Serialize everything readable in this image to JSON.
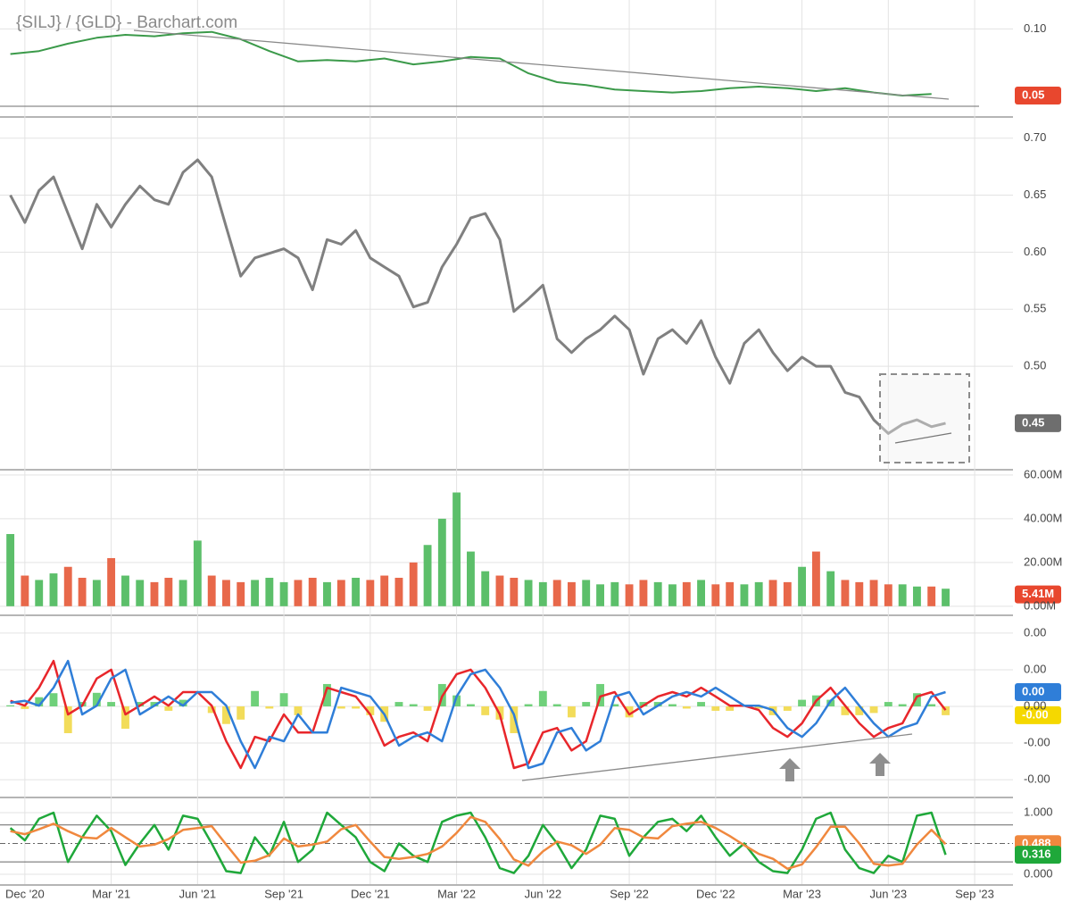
{
  "chart_data": [
    {
      "type": "line",
      "title": "{SILJ} / {GLD} - Barchart.com",
      "x": [
        2020.875,
        2020.958,
        2021.042,
        2021.125,
        2021.208,
        2021.292,
        2021.375,
        2021.458,
        2021.542,
        2021.625,
        2021.708,
        2021.792,
        2021.875,
        2021.958,
        2022.042,
        2022.125,
        2022.208,
        2022.292,
        2022.375,
        2022.458,
        2022.542,
        2022.625,
        2022.708,
        2022.792,
        2022.875,
        2022.958,
        2023.042,
        2023.125,
        2023.208,
        2023.292,
        2023.375,
        2023.458,
        2023.542
      ],
      "values": [
        0.083,
        0.085,
        0.09,
        0.094,
        0.096,
        0.095,
        0.097,
        0.098,
        0.093,
        0.085,
        0.078,
        0.079,
        0.078,
        0.08,
        0.076,
        0.078,
        0.081,
        0.08,
        0.07,
        0.064,
        0.062,
        0.059,
        0.058,
        0.057,
        0.058,
        0.06,
        0.061,
        0.06,
        0.058,
        0.06,
        0.057,
        0.055,
        0.056
      ],
      "color": "#3b9a4a",
      "xlim": [
        2020.845,
        2023.778
      ],
      "ylim": [
        0.0405,
        0.1195
      ],
      "yticks": [
        {
          "value": 0.1,
          "label": "0.10"
        }
      ],
      "badge": {
        "value": 0.055,
        "label": "0.05",
        "color": "#e8472e"
      }
    },
    {
      "type": "panels",
      "xlim": [
        2020.845,
        2023.778
      ],
      "x": [
        2020.875,
        2020.917,
        2020.958,
        2021.0,
        2021.042,
        2021.083,
        2021.125,
        2021.167,
        2021.208,
        2021.25,
        2021.292,
        2021.333,
        2021.375,
        2021.417,
        2021.458,
        2021.5,
        2021.542,
        2021.583,
        2021.625,
        2021.667,
        2021.708,
        2021.75,
        2021.792,
        2021.833,
        2021.875,
        2021.917,
        2021.958,
        2022.0,
        2022.042,
        2022.083,
        2022.125,
        2022.167,
        2022.208,
        2022.25,
        2022.292,
        2022.333,
        2022.375,
        2022.417,
        2022.458,
        2022.5,
        2022.542,
        2022.583,
        2022.625,
        2022.667,
        2022.708,
        2022.75,
        2022.792,
        2022.833,
        2022.875,
        2022.917,
        2022.958,
        2023.0,
        2023.042,
        2023.083,
        2023.125,
        2023.167,
        2023.208,
        2023.25,
        2023.292,
        2023.333,
        2023.375,
        2023.417,
        2023.458,
        2023.5,
        2023.542,
        2023.583
      ],
      "xticks": [
        {
          "value": 2020.917,
          "label": "Dec '20"
        },
        {
          "value": 2021.167,
          "label": "Mar '21"
        },
        {
          "value": 2021.417,
          "label": "Jun '21"
        },
        {
          "value": 2021.667,
          "label": "Sep '21"
        },
        {
          "value": 2021.917,
          "label": "Dec '21"
        },
        {
          "value": 2022.167,
          "label": "Mar '22"
        },
        {
          "value": 2022.417,
          "label": "Jun '22"
        },
        {
          "value": 2022.667,
          "label": "Sep '22"
        },
        {
          "value": 2022.917,
          "label": "Dec '22"
        },
        {
          "value": 2023.167,
          "label": "Mar '23"
        },
        {
          "value": 2023.417,
          "label": "Jun '23"
        },
        {
          "value": 2023.667,
          "label": "Sep '23"
        }
      ],
      "panels": [
        {
          "type": "line",
          "color": "#808080",
          "values": [
            0.65,
            0.626,
            0.654,
            0.666,
            0.634,
            0.603,
            0.642,
            0.622,
            0.642,
            0.658,
            0.646,
            0.642,
            0.67,
            0.681,
            0.666,
            0.622,
            0.579,
            0.595,
            0.599,
            0.603,
            0.595,
            0.567,
            0.611,
            0.607,
            0.619,
            0.595,
            0.587,
            0.579,
            0.552,
            0.556,
            0.587,
            0.607,
            0.63,
            0.634,
            0.611,
            0.548,
            0.559,
            0.571,
            0.524,
            0.512,
            0.524,
            0.532,
            0.544,
            0.532,
            0.493,
            0.524,
            0.532,
            0.52,
            0.54,
            0.508,
            0.485,
            0.52,
            0.532,
            0.512,
            0.496,
            0.508,
            0.5,
            0.5,
            0.477,
            0.473,
            0.453,
            0.441,
            0.449,
            0.453,
            0.447,
            0.45
          ],
          "ylim": [
            0.41,
            0.717
          ],
          "yticks": [
            {
              "value": 0.5,
              "label": "0.50"
            },
            0.55,
            {
              "value": 0.6,
              "label": "0.60"
            },
            0.65,
            {
              "value": 0.7,
              "label": "0.70"
            }
          ],
          "badge": {
            "value": 0.45,
            "label": "0.45",
            "color": "#6e6e6e"
          }
        },
        {
          "type": "bar",
          "up_color": "#5cbf6a",
          "down_color": "#e8684a",
          "values": [
            33,
            14,
            12,
            15,
            18,
            13,
            12,
            22,
            14,
            12,
            11,
            13,
            12,
            30,
            14,
            12,
            11,
            12,
            13,
            11,
            12,
            13,
            11,
            12,
            13,
            12,
            14,
            13,
            20,
            28,
            40,
            52,
            25,
            16,
            14,
            13,
            12,
            11,
            12,
            11,
            12,
            10,
            11,
            10,
            12,
            11,
            10,
            11,
            12,
            10,
            11,
            10,
            11,
            12,
            11,
            18,
            25,
            16,
            12,
            11,
            12,
            10,
            10,
            9,
            9,
            8
          ],
          "ylim": [
            -3.75,
            62
          ],
          "yticks": [
            {
              "value": 0,
              "label": "0.00M"
            },
            {
              "value": 20,
              "label": "20.00M"
            },
            {
              "value": 40,
              "label": "40.00M"
            },
            {
              "value": 60,
              "label": "60.00M"
            }
          ],
          "badge": {
            "value": 5.41,
            "label": "5.41M",
            "color": "#e8472e"
          }
        },
        {
          "type": "macd",
          "macd": {
            "color": "#e8262b",
            "values": [
              0.00015,
              2e-05,
              0.00051,
              0.00124,
              -0.00022,
              2e-05,
              0.00076,
              0.001,
              -0.00022,
              2e-05,
              0.00027,
              2e-05,
              0.00039,
              0.00039,
              2e-05,
              -0.00095,
              -0.00168,
              -0.00083,
              -0.00095,
              -0.00022,
              -0.00071,
              -0.00071,
              0.00051,
              0.00039,
              0.00027,
              -0.00022,
              -0.00107,
              -0.00083,
              -0.00071,
              -0.00095,
              0.00027,
              0.00088,
              0.001,
              0.00051,
              -0.00022,
              -0.00168,
              -0.00156,
              -0.00071,
              -0.00059,
              -0.0012,
              -0.00095,
              0.00027,
              0.00039,
              -0.00022,
              2e-05,
              0.00027,
              0.00039,
              0.00027,
              0.00051,
              0.00027,
              2e-05,
              2e-05,
              -0.0001,
              -0.00059,
              -0.00083,
              -0.00046,
              0.00015,
              0.00051,
              2e-05,
              -0.00046,
              -0.00083,
              -0.00059,
              -0.00046,
              0.00027,
              0.00039,
              -0.0001
            ]
          },
          "signal": {
            "color": "#2f7ed8",
            "values": [
              0.0001,
              0.00015,
              2e-05,
              0.00051,
              0.00124,
              -0.00022,
              2e-05,
              0.00076,
              0.001,
              -0.00022,
              2e-05,
              0.00027,
              2e-05,
              0.00039,
              0.00039,
              2e-05,
              -0.00095,
              -0.00168,
              -0.00083,
              -0.00095,
              -0.00022,
              -0.00071,
              -0.00071,
              0.00051,
              0.00039,
              0.00027,
              -0.00022,
              -0.00107,
              -0.00083,
              -0.00071,
              -0.00095,
              0.00027,
              0.00088,
              0.001,
              0.00051,
              -0.00022,
              -0.00168,
              -0.00156,
              -0.00071,
              -0.00059,
              -0.0012,
              -0.00095,
              0.00027,
              0.00039,
              -0.00022,
              2e-05,
              0.00027,
              0.00039,
              0.00027,
              0.00051,
              0.00027,
              2e-05,
              2e-05,
              -0.0001,
              -0.00059,
              -0.00083,
              -0.00046,
              0.00015,
              0.00051,
              2e-05,
              -0.00046,
              -0.00083,
              -0.00059,
              -0.00046,
              0.00027,
              0.00039
            ]
          },
          "histogram": {
            "up_color": "#6fd07a",
            "down_color": "#f2dc5a",
            "values": [
              3e-05,
              -7e-05,
              0.00025,
              0.00036,
              -0.00073,
              0.00012,
              0.00037,
              0.00012,
              -0.00061,
              0.00012,
              0.00012,
              -0.00012,
              0.00018,
              0,
              -0.00018,
              -0.00048,
              -0.00036,
              0.00042,
              -6e-05,
              0.00036,
              -0.00024,
              0,
              0.00061,
              -6e-05,
              -6e-05,
              -0.00024,
              -0.00042,
              0.00012,
              6e-05,
              -0.00012,
              0.00061,
              0.0003,
              6e-05,
              -0.00024,
              -0.00036,
              -0.00073,
              6e-05,
              0.00042,
              6e-05,
              -0.0003,
              0.00012,
              0.00061,
              6e-05,
              -0.0003,
              0.00012,
              0.00012,
              6e-05,
              -6e-05,
              0.00012,
              -0.00012,
              -0.00012,
              0,
              -6e-05,
              -0.00024,
              -0.00012,
              0.00018,
              0.0003,
              0.00018,
              -0.00024,
              -0.00024,
              -0.00018,
              0.00012,
              6e-05,
              0.00036,
              6e-05,
              -0.00024
            ]
          },
          "ylim": [
            -0.00246,
            0.00246
          ],
          "yticks": [
            {
              "value": 0.002,
              "label": "0.00"
            },
            {
              "value": 0.001,
              "label": "0.00"
            },
            {
              "value": 0,
              "label": "0.00"
            },
            {
              "value": -0.001,
              "label": "-0.00"
            },
            {
              "value": -0.002,
              "label": "-0.00"
            }
          ],
          "badges": [
            {
              "value": 0.00039,
              "label": "0.00",
              "color": "#2f7ed8"
            },
            {
              "value": -0.00024,
              "label": "-0.00",
              "color": "#f5d800"
            }
          ]
        },
        {
          "type": "stochastic",
          "levels": [
            0.2,
            0.5,
            0.8
          ],
          "series": [
            {
              "color": "#1fa83a",
              "values": [
                0.75,
                0.55,
                0.9,
                1.0,
                0.2,
                0.6,
                0.95,
                0.7,
                0.15,
                0.5,
                0.8,
                0.4,
                0.95,
                0.9,
                0.5,
                0.05,
                0.02,
                0.6,
                0.3,
                0.85,
                0.2,
                0.4,
                1.0,
                0.8,
                0.6,
                0.2,
                0.05,
                0.5,
                0.3,
                0.2,
                0.85,
                0.95,
                1.0,
                0.6,
                0.1,
                0.02,
                0.3,
                0.8,
                0.5,
                0.1,
                0.4,
                0.95,
                0.9,
                0.3,
                0.6,
                0.85,
                0.9,
                0.7,
                0.95,
                0.6,
                0.3,
                0.5,
                0.2,
                0.05,
                0.02,
                0.4,
                0.9,
                1.0,
                0.4,
                0.1,
                0.02,
                0.3,
                0.2,
                0.95,
                1.0,
                0.316
              ]
            },
            {
              "color": "#f0883e",
              "values": [
                0.7,
                0.65,
                0.73,
                0.82,
                0.7,
                0.6,
                0.58,
                0.75,
                0.6,
                0.45,
                0.48,
                0.57,
                0.72,
                0.75,
                0.78,
                0.48,
                0.19,
                0.22,
                0.31,
                0.58,
                0.45,
                0.48,
                0.53,
                0.73,
                0.8,
                0.53,
                0.28,
                0.25,
                0.28,
                0.33,
                0.45,
                0.67,
                0.93,
                0.85,
                0.57,
                0.24,
                0.14,
                0.37,
                0.53,
                0.47,
                0.33,
                0.48,
                0.75,
                0.72,
                0.6,
                0.58,
                0.78,
                0.82,
                0.85,
                0.75,
                0.62,
                0.47,
                0.33,
                0.25,
                0.09,
                0.16,
                0.44,
                0.77,
                0.77,
                0.5,
                0.17,
                0.14,
                0.17,
                0.48,
                0.72,
                0.488
              ]
            }
          ],
          "ylim": [
            -0.16,
            1.217
          ],
          "yticks": [
            {
              "value": 0,
              "label": "0.000"
            },
            {
              "value": 1,
              "label": "1.000"
            }
          ]
        }
      ]
    }
  ]
}
